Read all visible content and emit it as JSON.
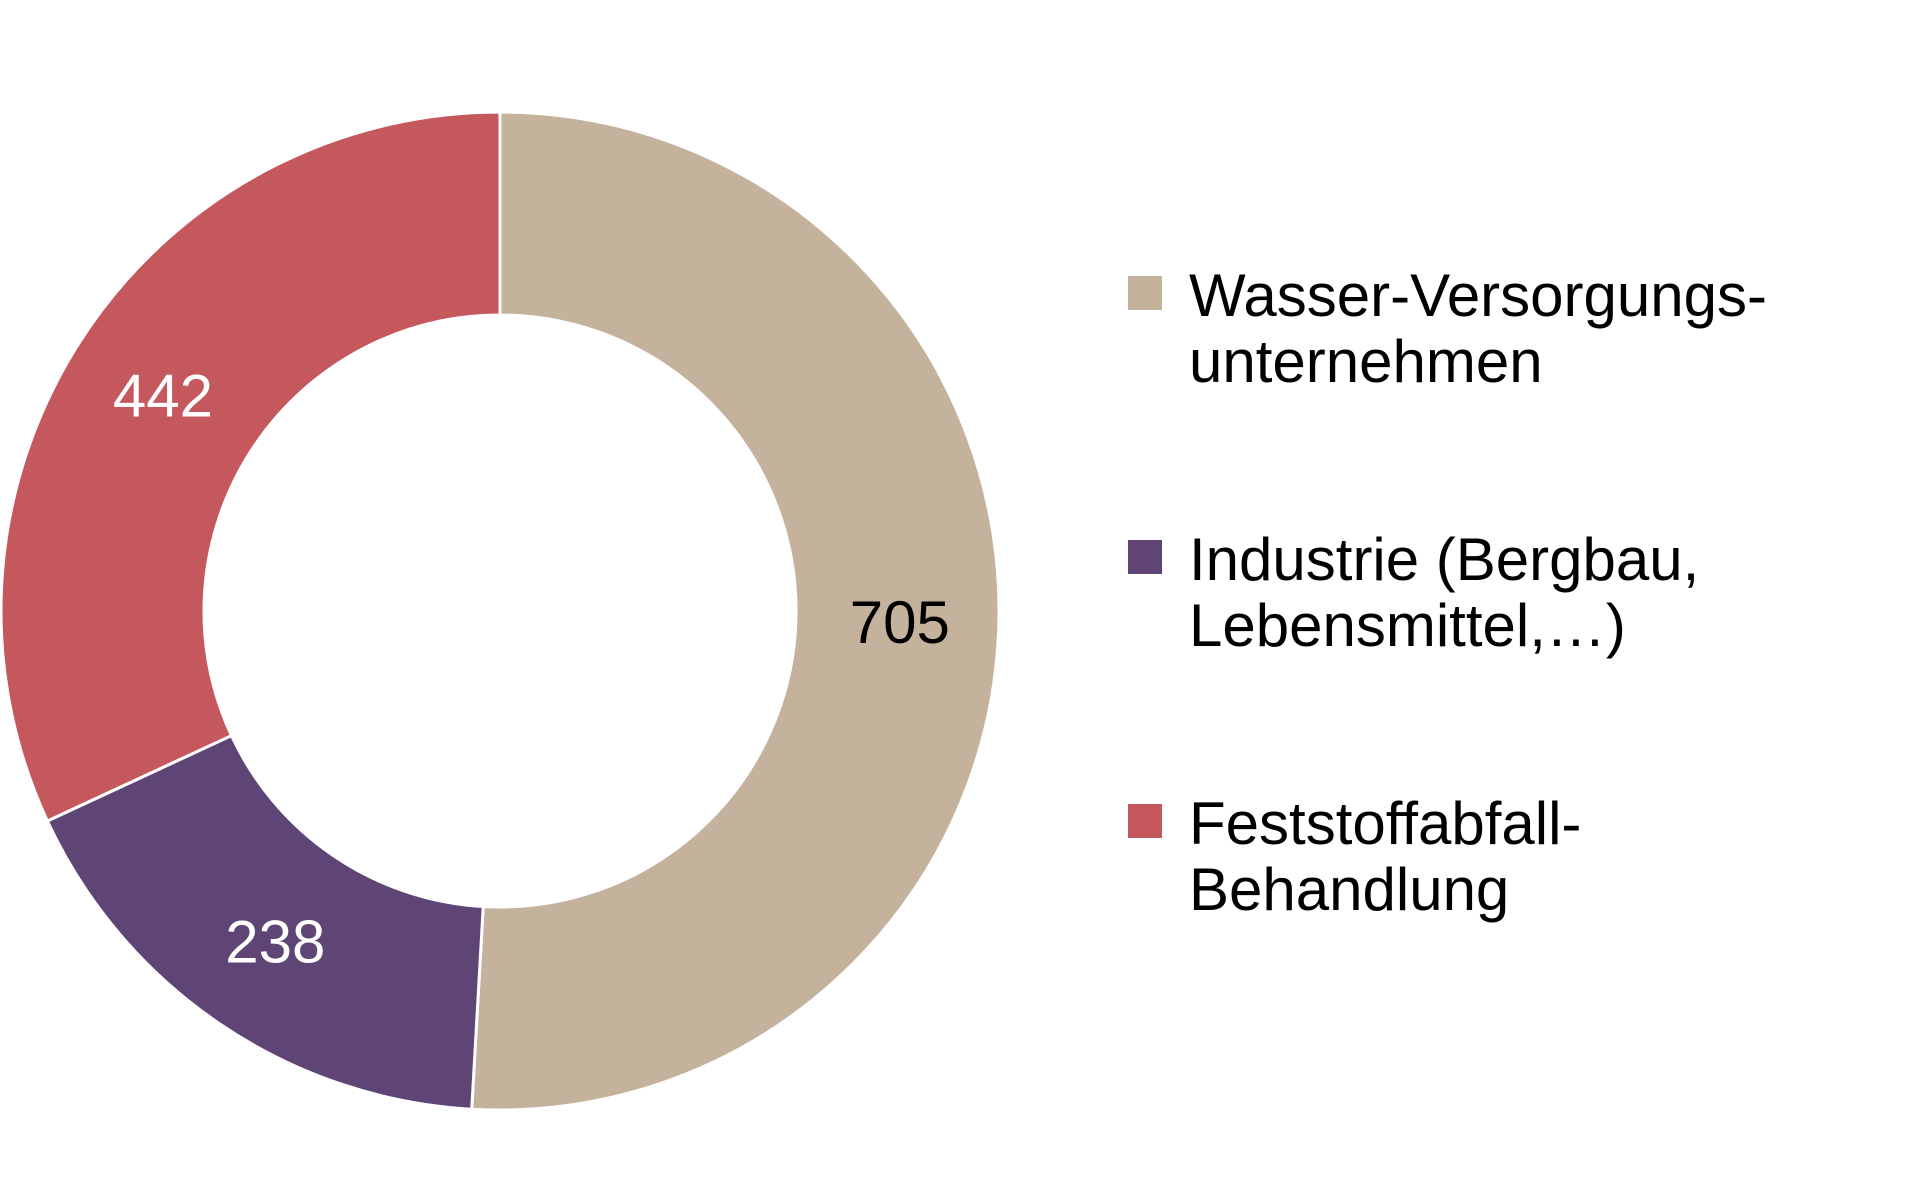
{
  "chart_data": {
    "type": "pie",
    "subtype": "donut",
    "direction": "clockwise",
    "start_angle_deg": 0,
    "total": 1385,
    "legend_position": "right",
    "background_color": "#ffffff",
    "separator_color": "#ffffff",
    "segments": [
      {
        "id": "wasser",
        "label": "Wasser-Versorgungs-unternehmen",
        "value": 705,
        "color": "#C4B29D",
        "value_label_color": "#000000"
      },
      {
        "id": "industrie",
        "label": "Industrie (Bergbau, Lebensmittel,…)",
        "value": 238,
        "color": "#5F4576",
        "value_label_color": "#FFFFFF"
      },
      {
        "id": "feststoff",
        "label": "Feststoffabfall-Behandlung",
        "value": 442,
        "color": "#C5585D",
        "value_label_color": "#FFFFFF"
      }
    ]
  },
  "legend": {
    "items": [
      {
        "line1": "Wasser-Versorgungs-",
        "line2": "unternehmen"
      },
      {
        "line1": "Industrie (Bergbau,",
        "line2": "Lebensmittel,…)"
      },
      {
        "line1": "Feststoffabfall-",
        "line2": "Behandlung"
      }
    ]
  }
}
